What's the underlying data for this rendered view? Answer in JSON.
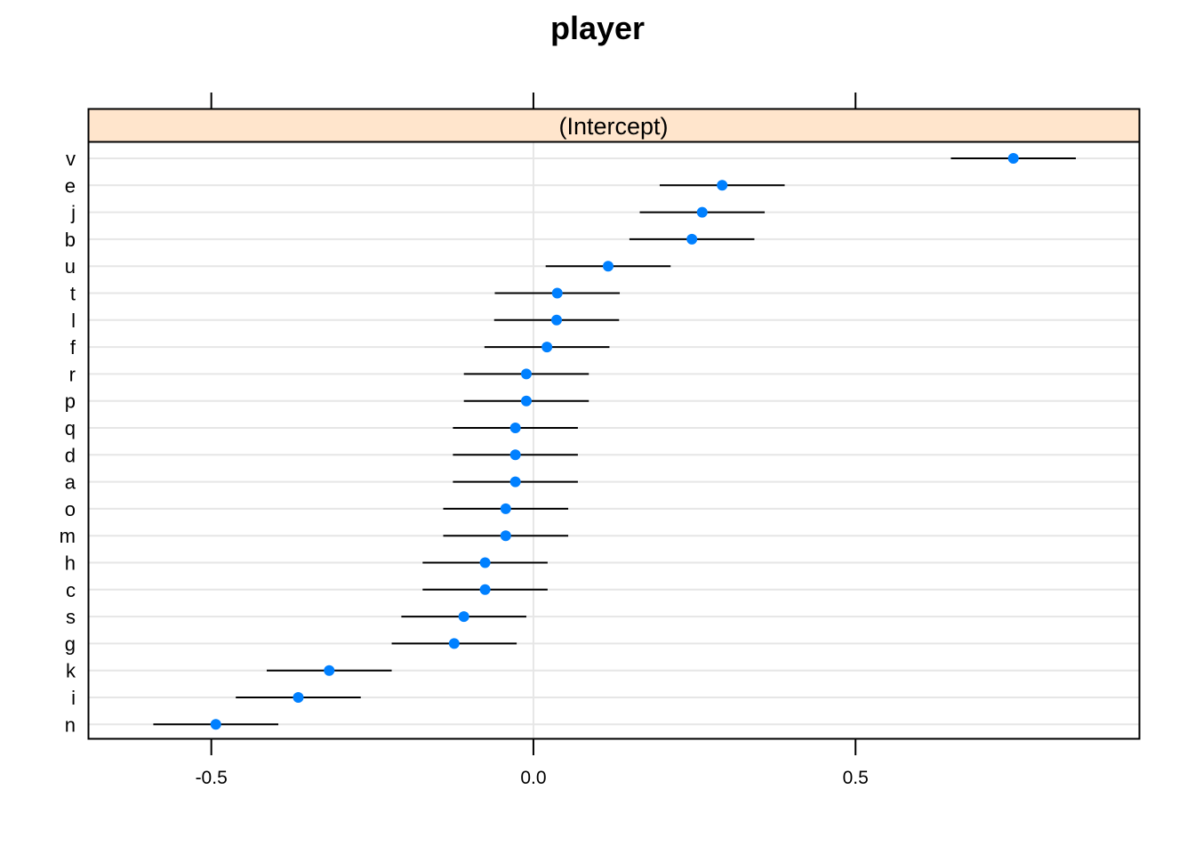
{
  "chart_data": {
    "type": "dotplot",
    "title": "player",
    "strip_label": "(Intercept)",
    "strip_color": "#ffe5cc",
    "point_color": "#0080ff",
    "xlim": [
      -0.69,
      0.94
    ],
    "x_ticks": [
      -0.5,
      0.0,
      0.5
    ],
    "x_tick_labels": [
      "-0.5",
      "0.0",
      "0.5"
    ],
    "grid": true,
    "categories": [
      "v",
      "e",
      "j",
      "b",
      "u",
      "t",
      "l",
      "f",
      "r",
      "p",
      "q",
      "d",
      "a",
      "o",
      "m",
      "h",
      "c",
      "s",
      "g",
      "k",
      "i",
      "n"
    ],
    "values": [
      0.745,
      0.293,
      0.262,
      0.246,
      0.116,
      0.037,
      0.036,
      0.021,
      -0.011,
      -0.011,
      -0.028,
      -0.028,
      -0.028,
      -0.043,
      -0.043,
      -0.075,
      -0.075,
      -0.108,
      -0.123,
      -0.317,
      -0.365,
      -0.493
    ],
    "lower": [
      0.648,
      0.196,
      0.165,
      0.149,
      0.019,
      -0.06,
      -0.061,
      -0.076,
      -0.108,
      -0.108,
      -0.125,
      -0.125,
      -0.125,
      -0.14,
      -0.14,
      -0.172,
      -0.172,
      -0.205,
      -0.22,
      -0.414,
      -0.462,
      -0.59
    ],
    "upper": [
      0.842,
      0.39,
      0.359,
      0.343,
      0.213,
      0.134,
      0.133,
      0.118,
      0.086,
      0.086,
      0.069,
      0.069,
      0.069,
      0.054,
      0.054,
      0.022,
      0.022,
      -0.011,
      -0.026,
      -0.22,
      -0.268,
      -0.396
    ]
  }
}
